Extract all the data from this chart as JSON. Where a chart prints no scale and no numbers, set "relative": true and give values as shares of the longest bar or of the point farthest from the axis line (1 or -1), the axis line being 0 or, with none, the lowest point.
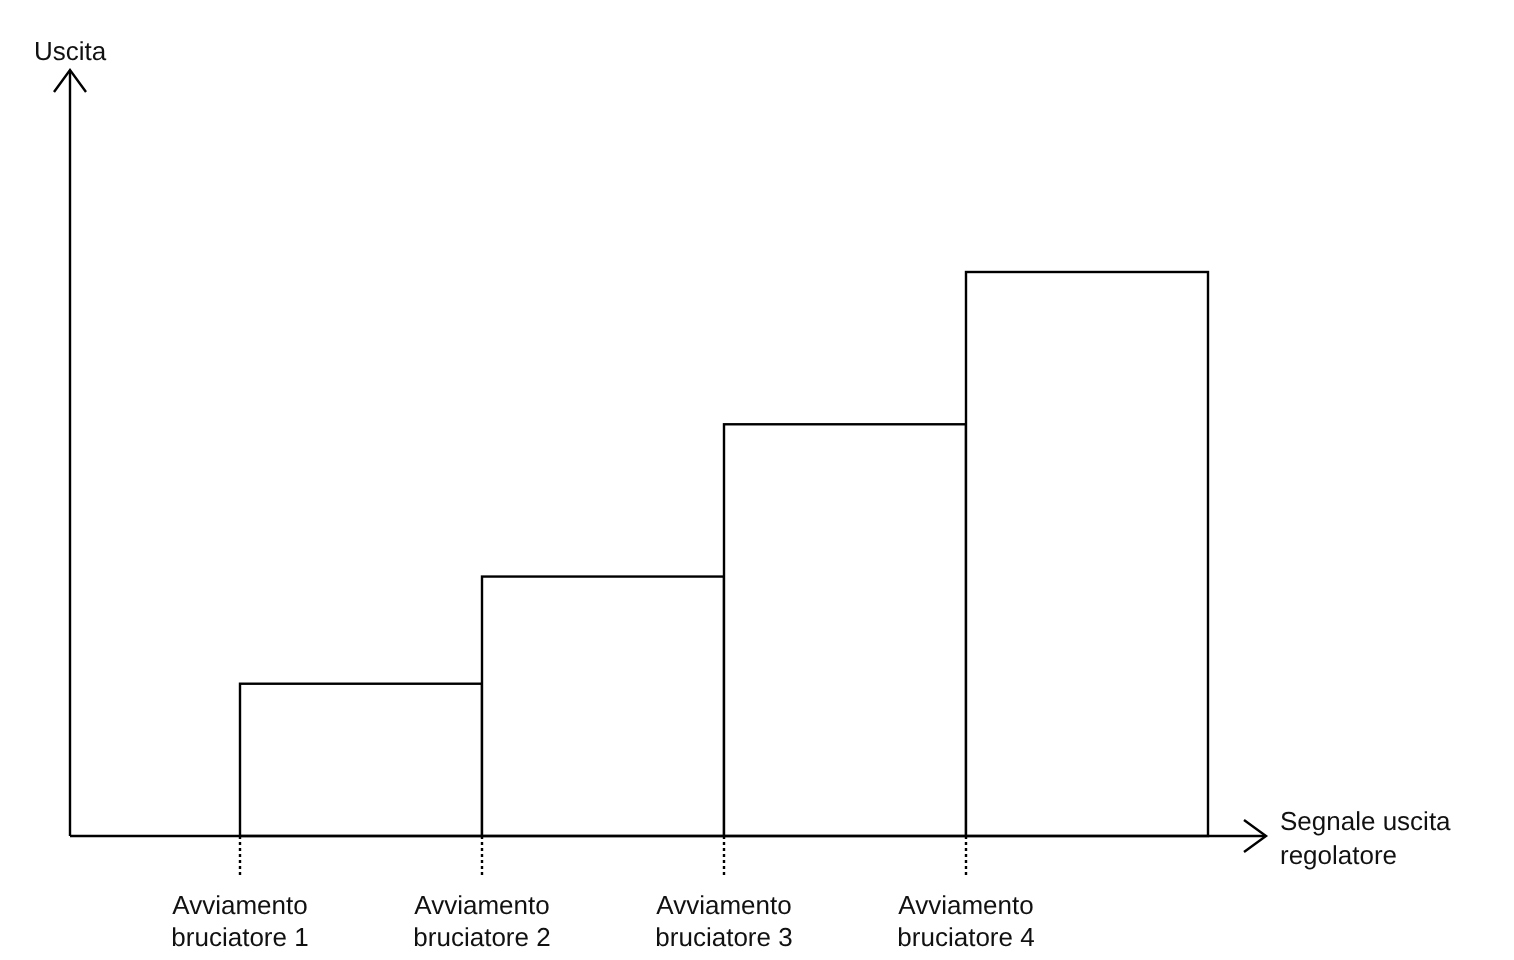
{
  "chart_data": {
    "type": "bar",
    "relative": true,
    "xlabel": "Segnale uscita regolatore",
    "annotations": [
      "Uscita"
    ],
    "categories": [
      "Avviamento bruciatore 1",
      "Avviamento bruciatore 2",
      "Avviamento bruciatore 3",
      "Avviamento bruciatore 4"
    ],
    "values": [
      0.27,
      0.46,
      0.73,
      1
    ],
    "color": "#000000"
  }
}
